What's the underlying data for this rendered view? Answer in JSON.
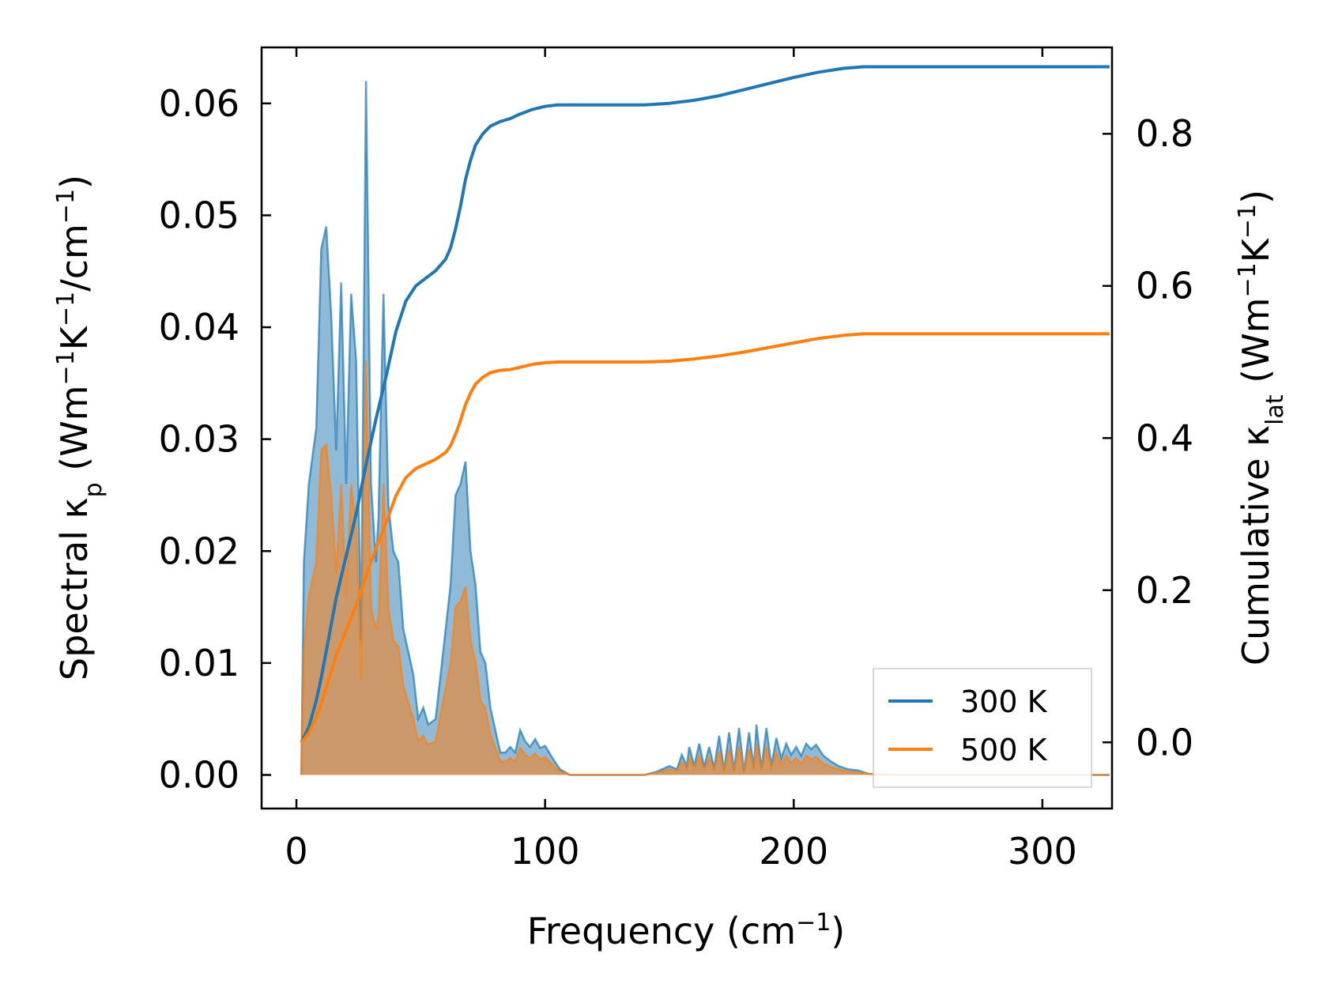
{
  "chart_data": {
    "type": "line",
    "xlabel": {
      "main": "Frequency (cm",
      "sup": "−1",
      "tail": ")"
    },
    "ylabel_left": {
      "p1": "Spectral κ",
      "sub": "p",
      "p2": " (Wm",
      "sup1": "−1",
      "p3": "K",
      "sup2": "−1",
      "p4": "/cm",
      "sup3": "−1",
      "p5": ")"
    },
    "ylabel_right": {
      "p1": "Cumulative κ",
      "sub": "lat",
      "p2": " (Wm",
      "sup1": "−1",
      "p3": "K",
      "sup2": "−1",
      "p4": ")"
    },
    "xlim": [
      -14,
      328
    ],
    "ylim_left": [
      -0.003,
      0.065
    ],
    "ylim_right": [
      -0.087,
      0.9135
    ],
    "xticks": [
      0,
      100,
      200,
      300
    ],
    "xtick_labels": [
      "0",
      "100",
      "200",
      "300"
    ],
    "yticks_left": [
      0,
      0.01,
      0.02,
      0.03,
      0.04,
      0.05,
      0.06
    ],
    "ytick_labels_left": [
      "0.00",
      "0.01",
      "0.02",
      "0.03",
      "0.04",
      "0.05",
      "0.06"
    ],
    "yticks_right": [
      0,
      0.2,
      0.4,
      0.6,
      0.8
    ],
    "ytick_labels_right": [
      "0.0",
      "0.2",
      "0.4",
      "0.6",
      "0.8"
    ],
    "legend_position": "lower-right",
    "series": [
      {
        "name": "300 K",
        "color": "#1f77b4",
        "fill_color": "#1f77b4",
        "spectral": [
          [
            2,
            0
          ],
          [
            3,
            0.019
          ],
          [
            5,
            0.026
          ],
          [
            8,
            0.031
          ],
          [
            10,
            0.047
          ],
          [
            12,
            0.049
          ],
          [
            14,
            0.041
          ],
          [
            16,
            0.029
          ],
          [
            18,
            0.044
          ],
          [
            20,
            0.026
          ],
          [
            22,
            0.043
          ],
          [
            24,
            0.037
          ],
          [
            26,
            0.012
          ],
          [
            28,
            0.062
          ],
          [
            30,
            0.026
          ],
          [
            32,
            0.019
          ],
          [
            33,
            0.023
          ],
          [
            35,
            0.043
          ],
          [
            37,
            0.024
          ],
          [
            39,
            0.02
          ],
          [
            41,
            0.019
          ],
          [
            43,
            0.013
          ],
          [
            45,
            0.011
          ],
          [
            47,
            0.009
          ],
          [
            49,
            0.005
          ],
          [
            51,
            0.006
          ],
          [
            53,
            0.0045
          ],
          [
            56,
            0.005
          ],
          [
            59,
            0.011
          ],
          [
            62,
            0.017
          ],
          [
            64,
            0.025
          ],
          [
            66,
            0.026
          ],
          [
            68,
            0.028
          ],
          [
            70,
            0.02
          ],
          [
            72,
            0.017
          ],
          [
            74,
            0.011
          ],
          [
            76,
            0.01
          ],
          [
            78,
            0.006
          ],
          [
            80,
            0.004
          ],
          [
            82,
            0.002
          ],
          [
            84,
            0.002
          ],
          [
            86,
            0.0025
          ],
          [
            88,
            0.002
          ],
          [
            90,
            0.004
          ],
          [
            92,
            0.003
          ],
          [
            94,
            0.0025
          ],
          [
            96,
            0.0032
          ],
          [
            98,
            0.0024
          ],
          [
            100,
            0.0026
          ],
          [
            103,
            0.0015
          ],
          [
            106,
            0.0005
          ],
          [
            110,
            0
          ],
          [
            140,
            0
          ],
          [
            145,
            0.0003
          ],
          [
            150,
            0.0008
          ],
          [
            153,
            0.0005
          ],
          [
            155,
            0.0018
          ],
          [
            157,
            0.0008
          ],
          [
            158,
            0.0025
          ],
          [
            160,
            0.0008
          ],
          [
            162,
            0.0028
          ],
          [
            164,
            0.0007
          ],
          [
            166,
            0.0025
          ],
          [
            168,
            0.0006
          ],
          [
            170,
            0.0035
          ],
          [
            172,
            0.0004
          ],
          [
            174,
            0.0038
          ],
          [
            176,
            0.0004
          ],
          [
            178,
            0.0042
          ],
          [
            180,
            0.0003
          ],
          [
            182,
            0.0038
          ],
          [
            184,
            0.0006
          ],
          [
            185,
            0.0045
          ],
          [
            187,
            0.0005
          ],
          [
            189,
            0.0042
          ],
          [
            191,
            0.0008
          ],
          [
            193,
            0.0033
          ],
          [
            195,
            0.0015
          ],
          [
            197,
            0.0028
          ],
          [
            199,
            0.0018
          ],
          [
            201,
            0.0025
          ],
          [
            203,
            0.0017
          ],
          [
            205,
            0.0028
          ],
          [
            207,
            0.0023
          ],
          [
            209,
            0.0027
          ],
          [
            212,
            0.0017
          ],
          [
            215,
            0.0012
          ],
          [
            218,
            0.0008
          ],
          [
            222,
            0.0005
          ],
          [
            226,
            0.0004
          ],
          [
            230,
            0.0001
          ],
          [
            240,
            0
          ],
          [
            300,
            0
          ],
          [
            327,
            0
          ]
        ],
        "cumulative": [
          [
            2,
            0
          ],
          [
            5,
            0.02
          ],
          [
            8,
            0.055
          ],
          [
            10,
            0.085
          ],
          [
            12,
            0.12
          ],
          [
            14,
            0.155
          ],
          [
            16,
            0.19
          ],
          [
            20,
            0.245
          ],
          [
            24,
            0.3
          ],
          [
            28,
            0.365
          ],
          [
            32,
            0.425
          ],
          [
            36,
            0.48
          ],
          [
            40,
            0.54
          ],
          [
            44,
            0.58
          ],
          [
            48,
            0.6
          ],
          [
            52,
            0.61
          ],
          [
            56,
            0.62
          ],
          [
            60,
            0.635
          ],
          [
            62,
            0.65
          ],
          [
            64,
            0.675
          ],
          [
            66,
            0.705
          ],
          [
            68,
            0.74
          ],
          [
            70,
            0.765
          ],
          [
            72,
            0.785
          ],
          [
            75,
            0.8
          ],
          [
            78,
            0.81
          ],
          [
            82,
            0.816
          ],
          [
            86,
            0.82
          ],
          [
            90,
            0.826
          ],
          [
            95,
            0.832
          ],
          [
            100,
            0.836
          ],
          [
            105,
            0.838
          ],
          [
            120,
            0.838
          ],
          [
            140,
            0.838
          ],
          [
            150,
            0.84
          ],
          [
            160,
            0.844
          ],
          [
            170,
            0.85
          ],
          [
            180,
            0.858
          ],
          [
            190,
            0.866
          ],
          [
            200,
            0.874
          ],
          [
            210,
            0.881
          ],
          [
            220,
            0.886
          ],
          [
            228,
            0.888
          ],
          [
            240,
            0.888
          ],
          [
            327,
            0.888
          ]
        ]
      },
      {
        "name": "500 K",
        "color": "#ff7f0e",
        "fill_color": "#ff7f0e",
        "spectral": [
          [
            2,
            0
          ],
          [
            3,
            0.011
          ],
          [
            5,
            0.016
          ],
          [
            8,
            0.019
          ],
          [
            10,
            0.029
          ],
          [
            12,
            0.0295
          ],
          [
            14,
            0.025
          ],
          [
            16,
            0.018
          ],
          [
            18,
            0.026
          ],
          [
            20,
            0.016
          ],
          [
            22,
            0.026
          ],
          [
            24,
            0.022
          ],
          [
            26,
            0.0085
          ],
          [
            28,
            0.037
          ],
          [
            30,
            0.015
          ],
          [
            32,
            0.013
          ],
          [
            33,
            0.014
          ],
          [
            35,
            0.026
          ],
          [
            37,
            0.015
          ],
          [
            39,
            0.012
          ],
          [
            41,
            0.0115
          ],
          [
            43,
            0.008
          ],
          [
            45,
            0.0065
          ],
          [
            47,
            0.005
          ],
          [
            49,
            0.003
          ],
          [
            51,
            0.0035
          ],
          [
            53,
            0.0027
          ],
          [
            56,
            0.003
          ],
          [
            59,
            0.0066
          ],
          [
            62,
            0.01
          ],
          [
            64,
            0.015
          ],
          [
            66,
            0.0155
          ],
          [
            68,
            0.0168
          ],
          [
            70,
            0.012
          ],
          [
            72,
            0.0102
          ],
          [
            74,
            0.0066
          ],
          [
            76,
            0.006
          ],
          [
            78,
            0.0036
          ],
          [
            80,
            0.0024
          ],
          [
            82,
            0.0012
          ],
          [
            84,
            0.0012
          ],
          [
            86,
            0.0015
          ],
          [
            88,
            0.0012
          ],
          [
            90,
            0.0024
          ],
          [
            92,
            0.0018
          ],
          [
            94,
            0.0015
          ],
          [
            96,
            0.0019
          ],
          [
            98,
            0.0014
          ],
          [
            100,
            0.0016
          ],
          [
            103,
            0.0009
          ],
          [
            106,
            0.0003
          ],
          [
            110,
            0
          ],
          [
            140,
            0
          ],
          [
            145,
            0.0002
          ],
          [
            150,
            0.0005
          ],
          [
            153,
            0.0003
          ],
          [
            155,
            0.0011
          ],
          [
            157,
            0.0005
          ],
          [
            158,
            0.0015
          ],
          [
            160,
            0.0005
          ],
          [
            162,
            0.0017
          ],
          [
            164,
            0.0004
          ],
          [
            166,
            0.0015
          ],
          [
            168,
            0.0004
          ],
          [
            170,
            0.0021
          ],
          [
            172,
            0.0002
          ],
          [
            174,
            0.0023
          ],
          [
            176,
            0.0002
          ],
          [
            178,
            0.0025
          ],
          [
            180,
            0.0002
          ],
          [
            182,
            0.0023
          ],
          [
            184,
            0.0004
          ],
          [
            185,
            0.0027
          ],
          [
            187,
            0.0003
          ],
          [
            189,
            0.0025
          ],
          [
            191,
            0.0005
          ],
          [
            193,
            0.002
          ],
          [
            195,
            0.0009
          ],
          [
            197,
            0.0017
          ],
          [
            199,
            0.0011
          ],
          [
            201,
            0.0015
          ],
          [
            203,
            0.001
          ],
          [
            205,
            0.0017
          ],
          [
            207,
            0.0014
          ],
          [
            209,
            0.0016
          ],
          [
            212,
            0.001
          ],
          [
            215,
            0.0007
          ],
          [
            218,
            0.0005
          ],
          [
            222,
            0.0003
          ],
          [
            226,
            0.0002
          ],
          [
            230,
            0.0001
          ],
          [
            240,
            0
          ],
          [
            300,
            0
          ],
          [
            327,
            0
          ]
        ],
        "cumulative": [
          [
            2,
            0
          ],
          [
            5,
            0.012
          ],
          [
            8,
            0.033
          ],
          [
            10,
            0.051
          ],
          [
            12,
            0.072
          ],
          [
            14,
            0.093
          ],
          [
            16,
            0.114
          ],
          [
            20,
            0.147
          ],
          [
            24,
            0.18
          ],
          [
            28,
            0.219
          ],
          [
            32,
            0.255
          ],
          [
            36,
            0.288
          ],
          [
            40,
            0.324
          ],
          [
            44,
            0.348
          ],
          [
            48,
            0.36
          ],
          [
            52,
            0.366
          ],
          [
            56,
            0.372
          ],
          [
            60,
            0.381
          ],
          [
            62,
            0.39
          ],
          [
            64,
            0.405
          ],
          [
            66,
            0.423
          ],
          [
            68,
            0.444
          ],
          [
            70,
            0.459
          ],
          [
            72,
            0.471
          ],
          [
            75,
            0.48
          ],
          [
            78,
            0.486
          ],
          [
            82,
            0.489
          ],
          [
            86,
            0.49
          ],
          [
            90,
            0.493
          ],
          [
            95,
            0.497
          ],
          [
            100,
            0.499
          ],
          [
            105,
            0.5
          ],
          [
            120,
            0.5
          ],
          [
            140,
            0.5
          ],
          [
            150,
            0.501
          ],
          [
            160,
            0.504
          ],
          [
            170,
            0.508
          ],
          [
            180,
            0.513
          ],
          [
            190,
            0.519
          ],
          [
            200,
            0.525
          ],
          [
            210,
            0.531
          ],
          [
            220,
            0.535
          ],
          [
            228,
            0.537
          ],
          [
            240,
            0.537
          ],
          [
            327,
            0.537
          ]
        ]
      }
    ]
  }
}
